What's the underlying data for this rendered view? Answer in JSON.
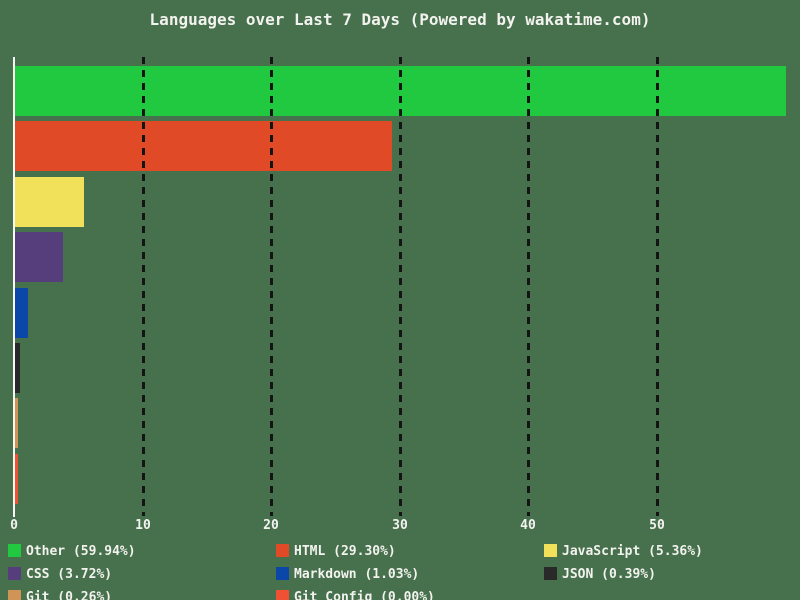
{
  "title": "Languages over Last 7 Days (Powered by wakatime.com)",
  "colors": {
    "background": "#47704d",
    "text": "#f2f2ee",
    "axis": "#f8f8f4",
    "gridline": "#141414"
  },
  "chart_data": {
    "type": "bar",
    "orientation": "horizontal",
    "title": "Languages over Last 7 Days (Powered by wakatime.com)",
    "categories": [
      "Other",
      "HTML",
      "JavaScript",
      "CSS",
      "Markdown",
      "JSON",
      "Git",
      "Git Config"
    ],
    "values": [
      59.94,
      29.3,
      5.36,
      3.72,
      1.03,
      0.39,
      0.26,
      0.0
    ],
    "unit": "%",
    "bar_colors": [
      "#21c940",
      "#e04a26",
      "#f1e05a",
      "#563d7c",
      "#0b47a9",
      "#292929",
      "#cf9456",
      "#f05033"
    ],
    "x_ticks": [
      "0",
      "10",
      "20",
      "30",
      "40",
      "50"
    ],
    "x_tick_values": [
      0,
      10,
      20,
      30,
      40,
      50
    ],
    "xlim": [
      0,
      60
    ],
    "grid": "vertical-dashed",
    "legend_position": "bottom",
    "legend": [
      {
        "label": "Other (59.94%)",
        "color": "#21c940"
      },
      {
        "label": "HTML (29.30%)",
        "color": "#e04a26"
      },
      {
        "label": "JavaScript (5.36%)",
        "color": "#f1e05a"
      },
      {
        "label": "CSS (3.72%)",
        "color": "#563d7c"
      },
      {
        "label": "Markdown (1.03%)",
        "color": "#0b47a9"
      },
      {
        "label": "JSON (0.39%)",
        "color": "#292929"
      },
      {
        "label": "Git (0.26%)",
        "color": "#cf9456"
      },
      {
        "label": "Git Config (0.00%)",
        "color": "#f05033"
      }
    ]
  }
}
